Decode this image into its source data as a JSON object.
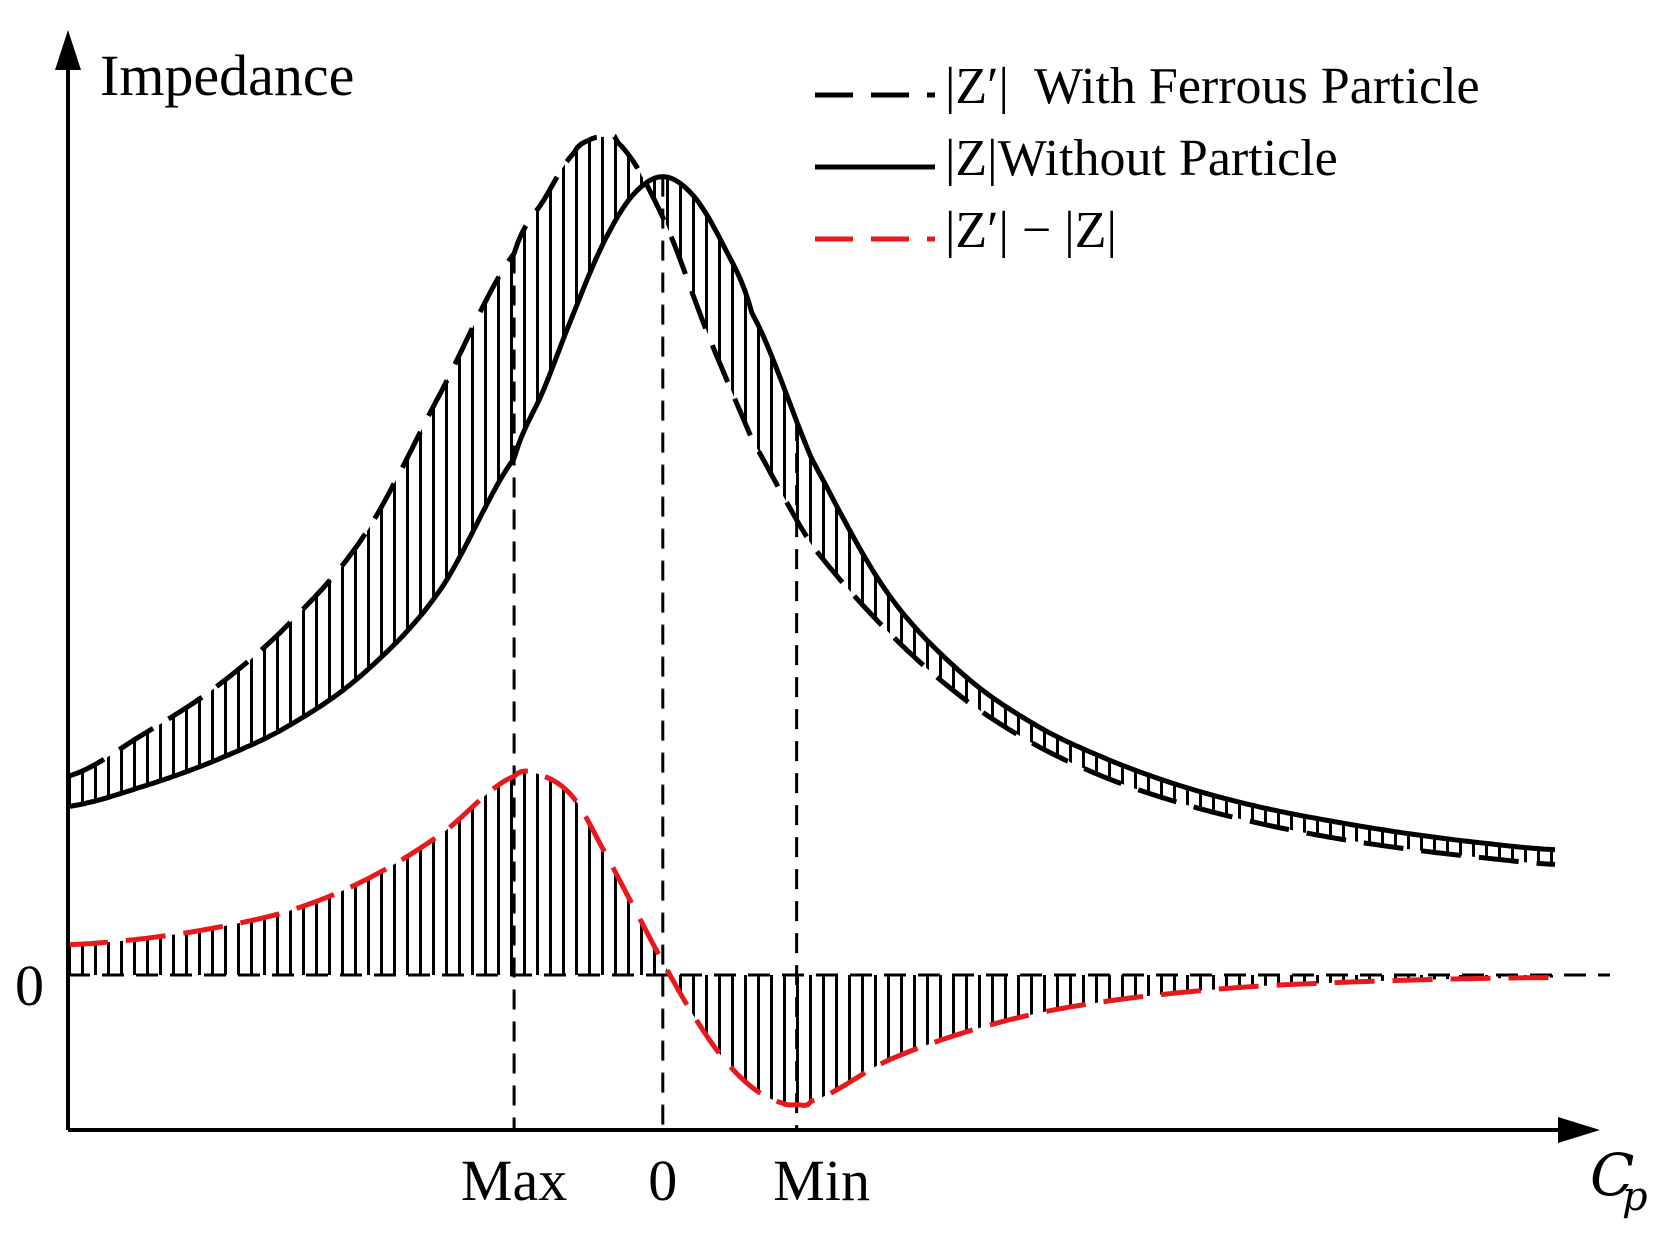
{
  "chart_data": {
    "type": "line",
    "ylabel": "Impedance",
    "xlabel": "C_p",
    "xlabel_main": "C",
    "xlabel_sub": "p",
    "y_zero_label": "0",
    "x_range": [
      -4,
      6
    ],
    "y_range": [
      -2.5,
      10.5
    ],
    "x_tick_labels": [
      {
        "label": "Max",
        "x": -1.0
      },
      {
        "label": "0",
        "x": 0.0
      },
      {
        "label": "Min",
        "x": 0.9
      }
    ],
    "legend": [
      {
        "key": "z_prime",
        "style": "dashed",
        "color": "#000000",
        "text": "|Z′|  With Ferrous Particle"
      },
      {
        "key": "z",
        "style": "solid",
        "color": "#000000",
        "text": "|Z|Without Particle"
      },
      {
        "key": "diff",
        "style": "dashed",
        "color": "#e8191c",
        "text": "|Z′| − |Z|"
      }
    ],
    "series": [
      {
        "name": "|Z′| With Ferrous Particle",
        "style": "dashed",
        "color": "#000000",
        "x": [
          -4.0,
          -3.5,
          -3.0,
          -2.5,
          -2.0,
          -1.5,
          -1.0,
          -0.8,
          -0.6,
          -0.5,
          -0.4,
          -0.3,
          0.0,
          0.3,
          0.6,
          1.0,
          1.5,
          2.0,
          2.5,
          3.0,
          3.5,
          4.0,
          4.5,
          5.0,
          5.5,
          6.0
        ],
        "y": [
          2.3,
          2.78,
          3.34,
          4.09,
          5.11,
          6.72,
          8.35,
          8.97,
          9.51,
          9.66,
          9.7,
          9.63,
          8.77,
          7.43,
          6.2,
          4.98,
          4.0,
          3.23,
          2.67,
          2.27,
          1.98,
          1.76,
          1.59,
          1.46,
          1.36,
          1.28
        ]
      },
      {
        "name": "|Z| Without Particle",
        "style": "solid",
        "color": "#000000",
        "x": [
          -4.0,
          -3.5,
          -3.0,
          -2.5,
          -2.0,
          -1.5,
          -1.0,
          -0.8,
          -0.6,
          -0.4,
          -0.2,
          0.0,
          0.2,
          0.4,
          0.6,
          1.0,
          1.5,
          2.0,
          2.5,
          3.0,
          3.5,
          4.0,
          4.5,
          5.0,
          5.5,
          6.0
        ],
        "y": [
          1.95,
          2.18,
          2.49,
          2.9,
          3.51,
          4.45,
          5.98,
          6.78,
          7.66,
          8.47,
          9.03,
          9.24,
          9.03,
          8.47,
          7.66,
          5.98,
          4.45,
          3.51,
          2.9,
          2.49,
          2.18,
          1.95,
          1.78,
          1.64,
          1.53,
          1.45
        ]
      },
      {
        "name": "|Z′| − |Z|",
        "style": "dashed",
        "color": "#e8191c",
        "x": [
          -4.0,
          -3.5,
          -3.0,
          -2.5,
          -2.0,
          -1.5,
          -1.0,
          -0.8,
          -0.6,
          -0.4,
          -0.2,
          0.0,
          0.2,
          0.4,
          0.6,
          0.8,
          0.9,
          1.0,
          1.5,
          2.0,
          2.5,
          3.0,
          3.5,
          4.0,
          4.5,
          5.0,
          5.5,
          6.0
        ],
        "y": [
          0.35,
          0.42,
          0.55,
          0.75,
          1.1,
          1.62,
          2.3,
          2.3,
          2.05,
          1.45,
          0.8,
          0.15,
          -0.45,
          -0.95,
          -1.3,
          -1.48,
          -1.5,
          -1.46,
          -1.0,
          -0.68,
          -0.45,
          -0.3,
          -0.2,
          -0.13,
          -0.09,
          -0.06,
          -0.04,
          -0.03
        ]
      }
    ],
    "vertical_dashed_lines_x": [
      -1.0,
      0.0,
      0.9
    ],
    "zero_line": {
      "style": "dashed",
      "y": 0
    }
  }
}
